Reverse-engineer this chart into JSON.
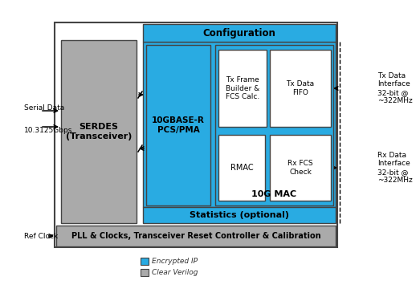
{
  "cyan_color": "#29ABE2",
  "gray_color": "#AAAAAA",
  "white": "#FFFFFF",
  "black": "#000000",
  "dark_border": "#444444",
  "legend_cyan_label": "Encrypted IP",
  "legend_gray_label": "Clear Verilog",
  "config_label": "Configuration",
  "stats_label": "Statistics (optional)",
  "pll_label": "PLL & Clocks, Transceiver Reset Controller & Calibration",
  "serdes_label": "SERDES\n(Transceiver)",
  "pcs_label": "10GBASE-R\nPCS/PMA",
  "mac_label": "10G MAC",
  "tx_frame_label": "Tx Frame\nBuilder &\nFCS Calc.",
  "tx_fifo_label": "Tx Data\nFIFO",
  "rmac_label": "RMAC",
  "rx_fcs_label": "Rx FCS\nCheck",
  "serial_data_line1": "Serial Data",
  "serial_data_line2": "10.3125Gbps",
  "ref_clock_label": "Ref Clock",
  "tx_interface_label": "Tx Data\nInterface\n32-bit @\n~322MHz",
  "rx_interface_label": "Rx Data\nInterface\n32-bit @\n~322MHz"
}
